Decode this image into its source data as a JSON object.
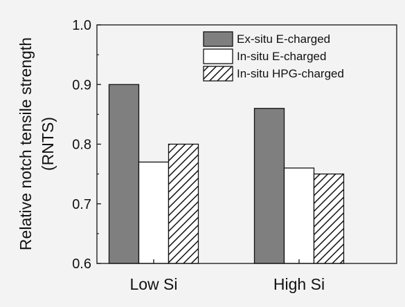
{
  "chart_data": {
    "type": "bar",
    "categories": [
      "Low Si",
      "High Si"
    ],
    "series": [
      {
        "name": "Ex-situ E-charged",
        "values": [
          0.9,
          0.86
        ],
        "fill": "#7f7f7f",
        "pattern": "solid"
      },
      {
        "name": "In-situ E-charged",
        "values": [
          0.77,
          0.76
        ],
        "fill": "#ffffff",
        "pattern": "solid"
      },
      {
        "name": "In-situ HPG-charged",
        "values": [
          0.8,
          0.75
        ],
        "fill": "#ffffff",
        "pattern": "hatch"
      }
    ],
    "ylabel_line1": "Relative notch tensile strength",
    "ylabel_line2": "(RNTS)",
    "xlabel": "",
    "ylim": [
      0.6,
      1.0
    ],
    "yticks": [
      "0.6",
      "0.7",
      "0.8",
      "0.9",
      "1.0"
    ],
    "grid": false,
    "legend_position": "top-right"
  }
}
